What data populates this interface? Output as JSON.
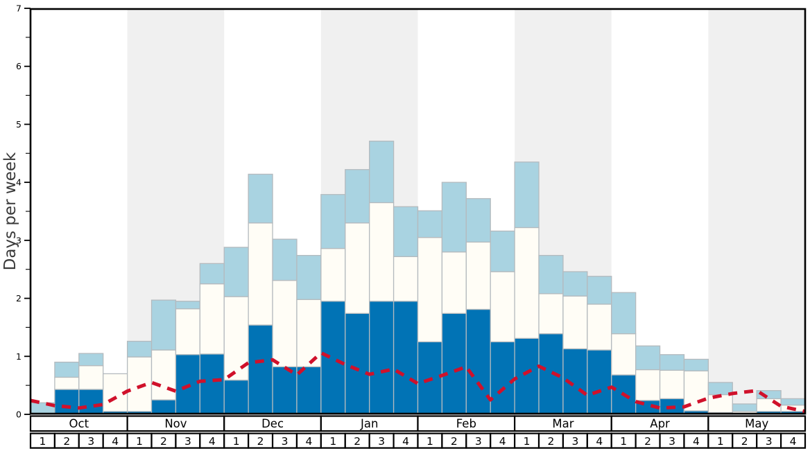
{
  "chart_data": {
    "type": "bar",
    "stacked": true,
    "title": "",
    "xlabel": "",
    "ylabel": "Days per week",
    "ylim": [
      0,
      7
    ],
    "y_major_ticks": [
      0,
      1,
      2,
      3,
      4,
      5,
      6,
      7
    ],
    "y_minor_tick_step": 0.5,
    "grid": false,
    "legend_position": "none",
    "colors": {
      "dark_segment": "#0173b5",
      "white_segment": "#fffdf6",
      "light_segment": "#a9d3e1",
      "bar_border": "#b4babe",
      "trend_line": "#d0112b",
      "month_shading": "#f0f0f0",
      "plot_background": "#ffffff",
      "axis": "#000000",
      "ylabel_color": "#3a3a3a",
      "tick_label_color": "#000000"
    },
    "months": [
      {
        "label": "Oct",
        "weeks": [
          "1",
          "2",
          "3",
          "4"
        ],
        "shaded": false
      },
      {
        "label": "Nov",
        "weeks": [
          "1",
          "2",
          "3",
          "4"
        ],
        "shaded": true
      },
      {
        "label": "Dec",
        "weeks": [
          "1",
          "2",
          "3",
          "4"
        ],
        "shaded": false
      },
      {
        "label": "Jan",
        "weeks": [
          "1",
          "2",
          "3",
          "4"
        ],
        "shaded": true
      },
      {
        "label": "Feb",
        "weeks": [
          "1",
          "2",
          "3",
          "4"
        ],
        "shaded": false
      },
      {
        "label": "Mar",
        "weeks": [
          "1",
          "2",
          "3",
          "4"
        ],
        "shaded": true
      },
      {
        "label": "Apr",
        "weeks": [
          "1",
          "2",
          "3",
          "4"
        ],
        "shaded": false
      },
      {
        "label": "May",
        "weeks": [
          "1",
          "2",
          "3",
          "4"
        ],
        "shaded": true
      }
    ],
    "series": [
      {
        "key": "dark",
        "name": "dark-blue bottom segment",
        "color": "#0173b5"
      },
      {
        "key": "white",
        "name": "white middle segment",
        "color": "#fffdf6"
      },
      {
        "key": "light",
        "name": "light-blue top segment",
        "color": "#a9d3e1"
      }
    ],
    "bars_cumulative_tops_days_per_week": [
      {
        "month": "Oct",
        "week": 1,
        "dark": 0.0,
        "white": 0.0,
        "light": 0.2
      },
      {
        "month": "Oct",
        "week": 2,
        "dark": 0.43,
        "white": 0.64,
        "light": 0.9
      },
      {
        "month": "Oct",
        "week": 3,
        "dark": 0.43,
        "white": 0.84,
        "light": 1.05
      },
      {
        "month": "Oct",
        "week": 4,
        "dark": 0.05,
        "white": 0.7,
        "light": 0.7
      },
      {
        "month": "Nov",
        "week": 1,
        "dark": 0.05,
        "white": 0.99,
        "light": 1.26
      },
      {
        "month": "Nov",
        "week": 2,
        "dark": 0.25,
        "white": 1.11,
        "light": 1.97
      },
      {
        "month": "Nov",
        "week": 3,
        "dark": 1.03,
        "white": 1.82,
        "light": 1.95
      },
      {
        "month": "Nov",
        "week": 4,
        "dark": 1.04,
        "white": 2.25,
        "light": 2.6
      },
      {
        "month": "Dec",
        "week": 1,
        "dark": 0.59,
        "white": 2.03,
        "light": 2.88
      },
      {
        "month": "Dec",
        "week": 2,
        "dark": 1.54,
        "white": 3.3,
        "light": 4.14
      },
      {
        "month": "Dec",
        "week": 3,
        "dark": 0.82,
        "white": 2.31,
        "light": 3.02
      },
      {
        "month": "Dec",
        "week": 4,
        "dark": 0.82,
        "white": 1.98,
        "light": 2.74
      },
      {
        "month": "Jan",
        "week": 1,
        "dark": 1.95,
        "white": 2.86,
        "light": 3.79
      },
      {
        "month": "Jan",
        "week": 2,
        "dark": 1.74,
        "white": 3.3,
        "light": 4.22
      },
      {
        "month": "Jan",
        "week": 3,
        "dark": 1.95,
        "white": 3.65,
        "light": 4.71
      },
      {
        "month": "Jan",
        "week": 4,
        "dark": 1.95,
        "white": 2.72,
        "light": 3.58
      },
      {
        "month": "Feb",
        "week": 1,
        "dark": 1.25,
        "white": 3.05,
        "light": 3.51
      },
      {
        "month": "Feb",
        "week": 2,
        "dark": 1.74,
        "white": 2.8,
        "light": 4.0
      },
      {
        "month": "Feb",
        "week": 3,
        "dark": 1.81,
        "white": 2.97,
        "light": 3.72
      },
      {
        "month": "Feb",
        "week": 4,
        "dark": 1.25,
        "white": 2.46,
        "light": 3.16
      },
      {
        "month": "Mar",
        "week": 1,
        "dark": 1.31,
        "white": 3.22,
        "light": 4.35
      },
      {
        "month": "Mar",
        "week": 2,
        "dark": 1.39,
        "white": 2.08,
        "light": 2.74
      },
      {
        "month": "Mar",
        "week": 3,
        "dark": 1.13,
        "white": 2.04,
        "light": 2.46
      },
      {
        "month": "Mar",
        "week": 4,
        "dark": 1.11,
        "white": 1.9,
        "light": 2.38
      },
      {
        "month": "Apr",
        "week": 1,
        "dark": 0.68,
        "white": 1.39,
        "light": 2.1
      },
      {
        "month": "Apr",
        "week": 2,
        "dark": 0.24,
        "white": 0.77,
        "light": 1.18
      },
      {
        "month": "Apr",
        "week": 3,
        "dark": 0.27,
        "white": 0.76,
        "light": 1.03
      },
      {
        "month": "Apr",
        "week": 4,
        "dark": 0.06,
        "white": 0.75,
        "light": 0.95
      },
      {
        "month": "May",
        "week": 1,
        "dark": 0.03,
        "white": 0.34,
        "light": 0.55
      },
      {
        "month": "May",
        "week": 2,
        "dark": 0.0,
        "white": 0.05,
        "light": 0.18
      },
      {
        "month": "May",
        "week": 3,
        "dark": 0.05,
        "white": 0.27,
        "light": 0.41
      },
      {
        "month": "May",
        "week": 4,
        "dark": 0.05,
        "white": 0.16,
        "light": 0.27
      }
    ],
    "trend_line": {
      "name": "red dashed line",
      "color": "#d0112b",
      "style": "dashed",
      "points_at_week_edges": [
        0.24,
        0.15,
        0.11,
        0.17,
        0.4,
        0.55,
        0.4,
        0.57,
        0.6,
        0.89,
        0.94,
        0.68,
        1.06,
        0.86,
        0.69,
        0.78,
        0.53,
        0.67,
        0.82,
        0.25,
        0.61,
        0.83,
        0.63,
        0.33,
        0.47,
        0.22,
        0.11,
        0.13,
        0.28,
        0.36,
        0.41,
        0.14,
        0.05
      ]
    }
  }
}
